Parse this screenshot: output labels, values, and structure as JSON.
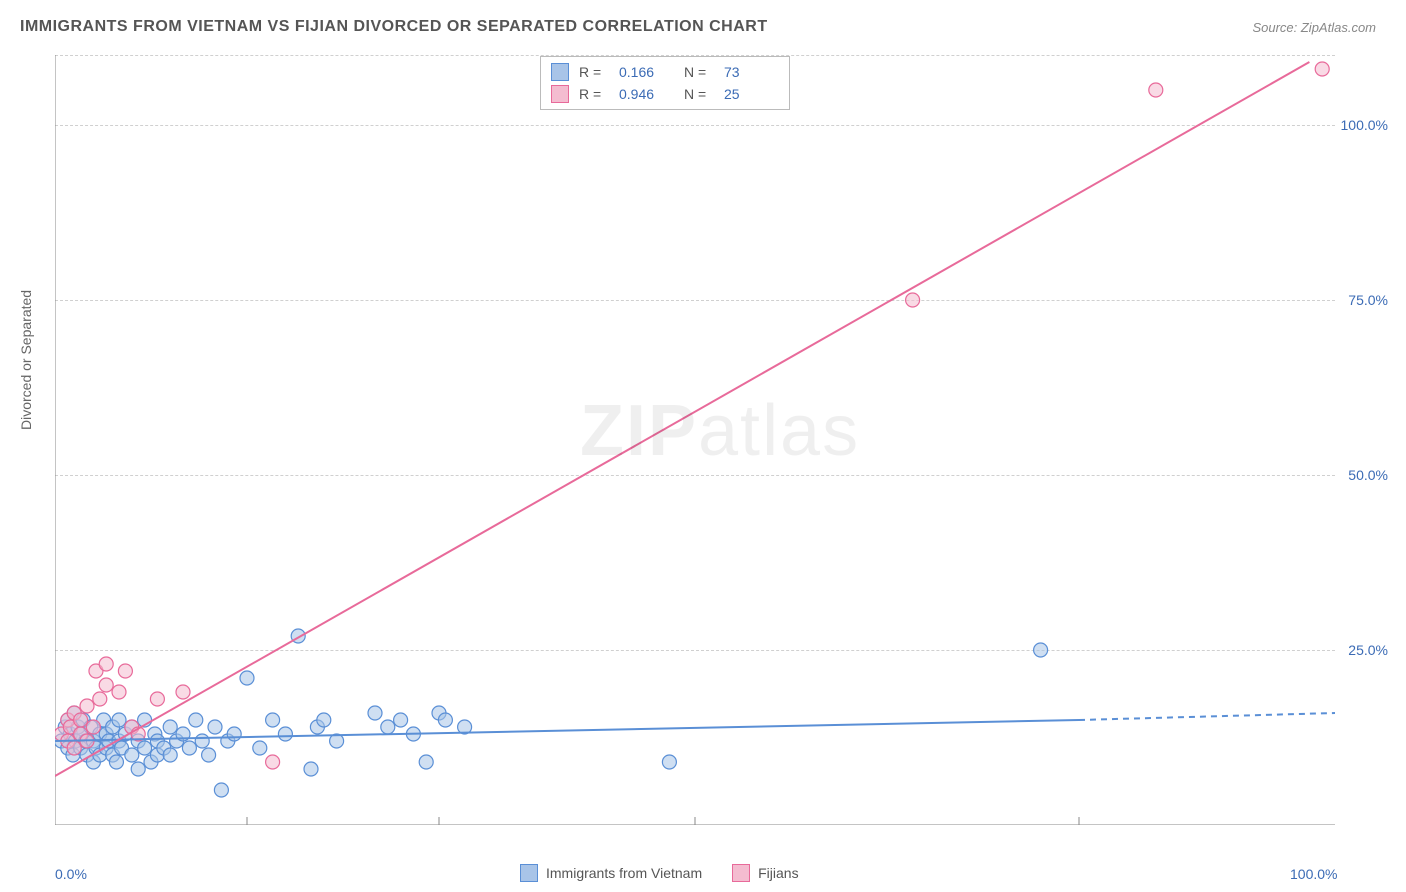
{
  "title": "IMMIGRANTS FROM VIETNAM VS FIJIAN DIVORCED OR SEPARATED CORRELATION CHART",
  "source": "Source: ZipAtlas.com",
  "watermark_bold": "ZIP",
  "watermark_light": "atlas",
  "chart": {
    "type": "scatter",
    "background_color": "#ffffff",
    "grid_color": "#d0d0d0",
    "axis_color": "#888888",
    "xlim": [
      0,
      100
    ],
    "ylim": [
      0,
      110
    ],
    "x_ticks": [
      0,
      100
    ],
    "x_tick_labels": [
      "0.0%",
      "100.0%"
    ],
    "y_ticks": [
      25,
      50,
      75,
      100
    ],
    "y_tick_labels": [
      "25.0%",
      "50.0%",
      "75.0%",
      "100.0%"
    ],
    "y_gridlines": [
      25,
      50,
      75,
      100,
      110
    ],
    "x_minor_ticks": [
      15,
      30,
      50,
      80
    ],
    "y_axis_label": "Divorced or Separated",
    "label_fontsize": 14,
    "tick_fontsize": 14,
    "tick_color": "#3b6bb5",
    "marker_radius": 7,
    "marker_stroke_width": 1.2,
    "line_width": 2,
    "series": [
      {
        "name": "Immigrants from Vietnam",
        "fill": "#a8c4e8",
        "stroke": "#5a8fd6",
        "fill_opacity": 0.55,
        "R": "0.166",
        "N": "73",
        "trendline": {
          "x1": 0,
          "y1": 12,
          "x2": 80,
          "y2": 15,
          "solid_end": 80,
          "dash_x2": 100,
          "dash_y2": 16
        },
        "points": [
          [
            0.5,
            12
          ],
          [
            0.8,
            14
          ],
          [
            1,
            15
          ],
          [
            1,
            11
          ],
          [
            1.2,
            13
          ],
          [
            1.4,
            10
          ],
          [
            1.5,
            16
          ],
          [
            1.6,
            12
          ],
          [
            1.8,
            14
          ],
          [
            2,
            13
          ],
          [
            2,
            11
          ],
          [
            2.2,
            15
          ],
          [
            2.4,
            12
          ],
          [
            2.5,
            10
          ],
          [
            2.8,
            14
          ],
          [
            3,
            12
          ],
          [
            3,
            9
          ],
          [
            3.2,
            11
          ],
          [
            3.5,
            13
          ],
          [
            3.5,
            10
          ],
          [
            3.8,
            15
          ],
          [
            4,
            11
          ],
          [
            4,
            13
          ],
          [
            4.2,
            12
          ],
          [
            4.5,
            10
          ],
          [
            4.5,
            14
          ],
          [
            4.8,
            9
          ],
          [
            5,
            12
          ],
          [
            5,
            15
          ],
          [
            5.2,
            11
          ],
          [
            5.5,
            13
          ],
          [
            6,
            10
          ],
          [
            6,
            14
          ],
          [
            6.5,
            8
          ],
          [
            6.5,
            12
          ],
          [
            7,
            11
          ],
          [
            7,
            15
          ],
          [
            7.5,
            9
          ],
          [
            7.8,
            13
          ],
          [
            8,
            10
          ],
          [
            8,
            12
          ],
          [
            8.5,
            11
          ],
          [
            9,
            14
          ],
          [
            9,
            10
          ],
          [
            9.5,
            12
          ],
          [
            10,
            13
          ],
          [
            10.5,
            11
          ],
          [
            11,
            15
          ],
          [
            11.5,
            12
          ],
          [
            12,
            10
          ],
          [
            12.5,
            14
          ],
          [
            13,
            5
          ],
          [
            13.5,
            12
          ],
          [
            14,
            13
          ],
          [
            15,
            21
          ],
          [
            16,
            11
          ],
          [
            17,
            15
          ],
          [
            18,
            13
          ],
          [
            19,
            27
          ],
          [
            20,
            8
          ],
          [
            20.5,
            14
          ],
          [
            21,
            15
          ],
          [
            22,
            12
          ],
          [
            25,
            16
          ],
          [
            26,
            14
          ],
          [
            27,
            15
          ],
          [
            28,
            13
          ],
          [
            29,
            9
          ],
          [
            30,
            16
          ],
          [
            30.5,
            15
          ],
          [
            32,
            14
          ],
          [
            48,
            9
          ],
          [
            77,
            25
          ]
        ]
      },
      {
        "name": "Fijians",
        "fill": "#f4bcd0",
        "stroke": "#e86a9a",
        "fill_opacity": 0.55,
        "R": "0.946",
        "N": "25",
        "trendline": {
          "x1": 0,
          "y1": 7,
          "x2": 98,
          "y2": 109
        },
        "points": [
          [
            0.5,
            13
          ],
          [
            1,
            15
          ],
          [
            1,
            12
          ],
          [
            1.2,
            14
          ],
          [
            1.5,
            11
          ],
          [
            1.5,
            16
          ],
          [
            2,
            13
          ],
          [
            2,
            15
          ],
          [
            2.5,
            12
          ],
          [
            2.5,
            17
          ],
          [
            3,
            14
          ],
          [
            3.2,
            22
          ],
          [
            3.5,
            18
          ],
          [
            4,
            20
          ],
          [
            4,
            23
          ],
          [
            5,
            19
          ],
          [
            5.5,
            22
          ],
          [
            6,
            14
          ],
          [
            6.5,
            13
          ],
          [
            8,
            18
          ],
          [
            10,
            19
          ],
          [
            17,
            9
          ],
          [
            67,
            75
          ],
          [
            86,
            105
          ],
          [
            99,
            108
          ]
        ]
      }
    ],
    "stats_box": {
      "rows": [
        {
          "swatch_fill": "#a8c4e8",
          "swatch_stroke": "#5a8fd6",
          "R_label": "R =",
          "R_val": "0.166",
          "N_label": "N =",
          "N_val": "73"
        },
        {
          "swatch_fill": "#f4bcd0",
          "swatch_stroke": "#e86a9a",
          "R_label": "R =",
          "R_val": "0.946",
          "N_label": "N =",
          "N_val": "25"
        }
      ]
    },
    "bottom_legend": [
      {
        "swatch_fill": "#a8c4e8",
        "swatch_stroke": "#5a8fd6",
        "label": "Immigrants from Vietnam"
      },
      {
        "swatch_fill": "#f4bcd0",
        "swatch_stroke": "#e86a9a",
        "label": "Fijians"
      }
    ]
  }
}
